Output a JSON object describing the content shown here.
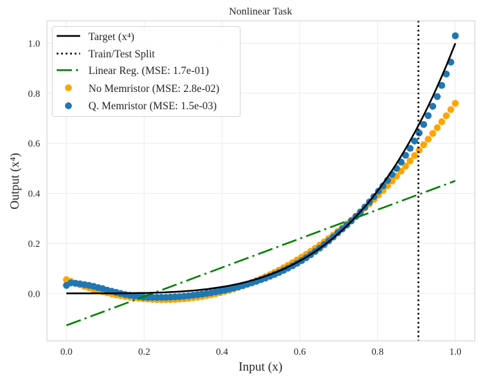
{
  "chart_data": {
    "type": "scatter",
    "title": "Nonlinear Task",
    "xlabel": "Input (x)",
    "ylabel": "Output (x⁴)",
    "xlim": [
      -0.05,
      1.05
    ],
    "ylim": [
      -0.19,
      1.09
    ],
    "xticks": [
      0.0,
      0.2,
      0.4,
      0.6,
      0.8,
      1.0
    ],
    "xtick_labels": [
      "0.0",
      "0.2",
      "0.4",
      "0.6",
      "0.8",
      "1.0"
    ],
    "yticks": [
      0.0,
      0.2,
      0.4,
      0.6,
      0.8,
      1.0
    ],
    "ytick_labels": [
      "0.0",
      "0.2",
      "0.4",
      "0.6",
      "0.8",
      "1.0"
    ],
    "grid": true,
    "legend_placement": "top-left",
    "split_x": 0.905,
    "x": [
      0,
      0.0116,
      0.0233,
      0.0349,
      0.0465,
      0.0581,
      0.0698,
      0.0814,
      0.093,
      0.1047,
      0.1163,
      0.1279,
      0.1395,
      0.1512,
      0.1628,
      0.1744,
      0.186,
      0.1977,
      0.2093,
      0.2209,
      0.2326,
      0.2442,
      0.2558,
      0.2674,
      0.2791,
      0.2907,
      0.3023,
      0.314,
      0.3256,
      0.3372,
      0.3488,
      0.3605,
      0.3721,
      0.3837,
      0.3953,
      0.407,
      0.4186,
      0.4302,
      0.4419,
      0.4535,
      0.4651,
      0.4767,
      0.4884,
      0.5,
      0.5116,
      0.5233,
      0.5349,
      0.5465,
      0.5581,
      0.5698,
      0.5814,
      0.593,
      0.6047,
      0.6163,
      0.6279,
      0.6395,
      0.6512,
      0.6628,
      0.6744,
      0.686,
      0.6977,
      0.7093,
      0.7209,
      0.7326,
      0.7442,
      0.7558,
      0.7674,
      0.7791,
      0.7907,
      0.8023,
      0.814,
      0.8256,
      0.8372,
      0.8488,
      0.8605,
      0.8721,
      0.8837,
      0.8953,
      0.907,
      0.9186,
      0.9302,
      0.9419,
      0.9535,
      0.9651,
      0.9767,
      0.9884,
      1
    ],
    "series": [
      {
        "name": "Target (x⁴)",
        "kind": "line",
        "style": "solid",
        "color": "#000000",
        "values": [
          0,
          0,
          0,
          0,
          0,
          0,
          0,
          0,
          0.0001,
          0.0001,
          0.0002,
          0.0003,
          0.0004,
          0.0005,
          0.0007,
          0.0009,
          0.0012,
          0.0015,
          0.0019,
          0.0024,
          0.0029,
          0.0036,
          0.0043,
          0.0051,
          0.0061,
          0.0071,
          0.0084,
          0.0097,
          0.0112,
          0.0129,
          0.0148,
          0.0169,
          0.0192,
          0.0217,
          0.0244,
          0.0274,
          0.0307,
          0.0343,
          0.0381,
          0.0423,
          0.0468,
          0.0516,
          0.0569,
          0.0625,
          0.0685,
          0.075,
          0.0819,
          0.0892,
          0.097,
          0.1054,
          0.1143,
          0.1237,
          0.1337,
          0.1443,
          0.1554,
          0.1673,
          0.1798,
          0.193,
          0.2069,
          0.2215,
          0.237,
          0.2531,
          0.2701,
          0.2881,
          0.3067,
          0.3263,
          0.3468,
          0.3685,
          0.3909,
          0.4143,
          0.439,
          0.4646,
          0.4913,
          0.5191,
          0.5483,
          0.5785,
          0.6099,
          0.6425,
          0.6768,
          0.7121,
          0.7487,
          0.7871,
          0.8266,
          0.8675,
          0.91,
          0.9544,
          1
        ]
      },
      {
        "name": "Train/Test Split",
        "kind": "vline",
        "style": "dotted",
        "color": "#000000"
      },
      {
        "name": "Linear Reg. (MSE: 1.7e-01)",
        "kind": "line",
        "style": "dashdot",
        "color": "#008000",
        "x": [
          0,
          1
        ],
        "values": [
          -0.128,
          0.45
        ]
      },
      {
        "name": "No Memristor (MSE: 2.8e-02)",
        "kind": "scatter",
        "color": "#ffa500",
        "values": [
          0.055,
          0.0478,
          0.0409,
          0.0344,
          0.0282,
          0.0224,
          0.0168,
          0.0116,
          0.0068,
          0.0023,
          -0.0019,
          -0.0057,
          -0.0092,
          -0.0124,
          -0.0152,
          -0.0176,
          -0.0197,
          -0.0215,
          -0.0229,
          -0.024,
          -0.0247,
          -0.025,
          -0.025,
          -0.0247,
          -0.024,
          -0.0229,
          -0.0215,
          -0.0197,
          -0.0176,
          -0.0151,
          -0.0122,
          -0.009,
          -0.0054,
          -0.0014,
          0.0029,
          0.0076,
          0.0126,
          0.018,
          0.0239,
          0.03,
          0.0366,
          0.0435,
          0.0508,
          0.0585,
          0.0665,
          0.075,
          0.0838,
          0.0929,
          0.1024,
          0.1125,
          0.1228,
          0.1335,
          0.1446,
          0.1561,
          0.168,
          0.1802,
          0.1929,
          0.2059,
          0.2194,
          0.2332,
          0.2475,
          0.2621,
          0.2771,
          0.2926,
          0.3084,
          0.3245,
          0.3411,
          0.3583,
          0.3757,
          0.3935,
          0.4118,
          0.4304,
          0.4494,
          0.4688,
          0.4888,
          0.509,
          0.5297,
          0.5508,
          0.5724,
          0.5943,
          0.6166,
          0.6395,
          0.6626,
          0.6862,
          0.7102,
          0.7348,
          0.7596
        ]
      },
      {
        "name": "Q. Memristor (MSE: 1.5e-03)",
        "kind": "scatter",
        "color": "#1f77b4",
        "values": [
          0.032,
          0.042,
          0.04,
          0.038,
          0.035,
          0.032,
          0.028,
          0.023,
          0.019,
          0.013,
          0.0087,
          0.0041,
          -0.0004,
          -0.0048,
          -0.0074,
          -0.01,
          -0.0124,
          -0.0149,
          -0.0157,
          -0.0159,
          -0.0161,
          -0.016,
          -0.0157,
          -0.0149,
          -0.0139,
          -0.0129,
          -0.0115,
          -0.0096,
          -0.0075,
          -0.0052,
          -0.0028,
          -0.0001,
          0.0028,
          0.0059,
          0.0092,
          0.0129,
          0.017,
          0.0214,
          0.026,
          0.031,
          0.0364,
          0.042,
          0.0481,
          0.0545,
          0.0611,
          0.0682,
          0.0756,
          0.0835,
          0.0919,
          0.1009,
          0.1104,
          0.1203,
          0.1311,
          0.1426,
          0.1546,
          0.1675,
          0.1809,
          0.195,
          0.2098,
          0.2254,
          0.2418,
          0.2572,
          0.273,
          0.2898,
          0.3073,
          0.3257,
          0.3451,
          0.3656,
          0.3868,
          0.4086,
          0.4298,
          0.4519,
          0.4751,
          0.4995,
          0.5251,
          0.5519,
          0.5798,
          0.6089,
          0.6411,
          0.6752,
          0.7107,
          0.7479,
          0.7866,
          0.8314,
          0.8769,
          0.9244,
          1.03
        ]
      }
    ]
  }
}
